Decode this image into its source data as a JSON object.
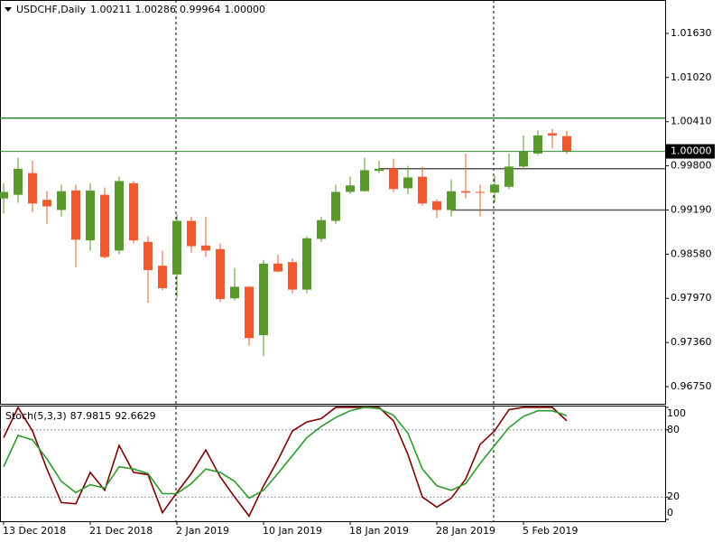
{
  "chart_data": [
    {
      "type": "candlestick",
      "title": "USDCHF,Daily",
      "readout": [
        "1.00211",
        "1.00286",
        "0.99964",
        "1.00000"
      ],
      "price_label": "1.00000",
      "categories": [
        "13 Dec 2018",
        null,
        null,
        null,
        null,
        null,
        "21 Dec 2018",
        null,
        null,
        null,
        null,
        null,
        "2 Jan 2019",
        null,
        null,
        null,
        null,
        null,
        "10 Jan 2019",
        null,
        null,
        null,
        null,
        null,
        "18 Jan 2019",
        null,
        null,
        null,
        null,
        null,
        "28 Jan 2019",
        null,
        null,
        null,
        null,
        null,
        "5 Feb 2019",
        null,
        null,
        null
      ],
      "open": [
        0.9935,
        0.994,
        0.997,
        0.9933,
        0.9919,
        0.9946,
        0.9877,
        0.994,
        0.9863,
        0.9956,
        0.9875,
        0.9842,
        0.983,
        0.9904,
        0.987,
        0.9865,
        0.9797,
        0.9813,
        0.9746,
        0.9845,
        0.9847,
        0.9809,
        0.9879,
        0.9904,
        0.9944,
        0.9945,
        0.9973,
        0.9976,
        0.9949,
        0.9965,
        0.9931,
        0.9919,
        0.9945,
        0.9944,
        0.9943,
        0.9951,
        0.9979,
        0.9997,
        1.0025,
        1.00211
      ],
      "high": [
        0.9956,
        0.9991,
        0.9987,
        0.9945,
        0.9954,
        0.9954,
        0.9956,
        0.995,
        0.9965,
        0.9959,
        0.9883,
        0.9863,
        0.9913,
        0.991,
        0.991,
        0.9873,
        0.9839,
        0.9814,
        0.985,
        0.9857,
        0.9852,
        0.9883,
        0.991,
        0.9954,
        0.9965,
        0.9991,
        0.9987,
        0.999,
        0.998,
        0.9979,
        0.9934,
        0.9961,
        0.9997,
        0.9954,
        0.9966,
        0.9997,
        1.0022,
        1.0029,
        1.0031,
        1.00286
      ],
      "low": [
        0.9914,
        0.9929,
        0.9916,
        0.99,
        0.991,
        0.984,
        0.9863,
        0.9852,
        0.9858,
        0.9873,
        0.9791,
        0.9808,
        0.9798,
        0.986,
        0.9854,
        0.9792,
        0.9794,
        0.9732,
        0.9717,
        0.9833,
        0.9804,
        0.9804,
        0.9875,
        0.99,
        0.9941,
        0.9944,
        0.997,
        0.9944,
        0.9941,
        0.9925,
        0.9908,
        0.991,
        0.9935,
        0.991,
        0.9929,
        0.9948,
        0.9976,
        0.9995,
        1.0004,
        0.99964
      ],
      "close": [
        0.9944,
        0.9976,
        0.9928,
        0.9924,
        0.9945,
        0.9878,
        0.9946,
        0.9854,
        0.9959,
        0.9877,
        0.9836,
        0.9811,
        0.9904,
        0.9869,
        0.9863,
        0.9796,
        0.9813,
        0.9742,
        0.9845,
        0.9834,
        0.9809,
        0.988,
        0.9905,
        0.9944,
        0.9953,
        0.9974,
        0.9976,
        0.9948,
        0.9964,
        0.9928,
        0.9919,
        0.9945,
        0.9943,
        0.9943,
        0.9954,
        0.9979,
        1.0,
        1.0022,
        1.0022,
        1.0
      ],
      "up_color": "#5a9a2c",
      "down_color": "#f05a2e",
      "ylim": [
        0.96513,
        1.02091
      ],
      "yticks": [
        {
          "value": 0.9675,
          "label": "0.96750"
        },
        {
          "value": 0.9736,
          "label": "0.97360"
        },
        {
          "value": 0.9797,
          "label": "0.97970"
        },
        {
          "value": 0.9858,
          "label": "0.98580"
        },
        {
          "value": 0.9919,
          "label": "0.99190"
        },
        {
          "value": 0.998,
          "label": "0.99800"
        },
        {
          "value": 1.0041,
          "label": "1.00410"
        },
        {
          "value": 1.0102,
          "label": "1.01020"
        },
        {
          "value": 1.0163,
          "label": "1.01630"
        }
      ],
      "hlines": [
        {
          "value": 1.0046,
          "color": "#2e8b2e",
          "from": 0
        },
        {
          "value": 0.9976,
          "color": "#555555",
          "from": 26
        },
        {
          "value": 0.9919,
          "color": "#555555",
          "from": 31
        }
      ],
      "period_separators": [
        12,
        34
      ]
    },
    {
      "type": "line",
      "title": "Stoch(5,3,3)",
      "readout": [
        "87.9815",
        "92.6629"
      ],
      "series": [
        {
          "color": "#800000",
          "values": [
            73,
            100,
            79,
            45,
            15,
            14,
            42,
            26,
            66,
            42,
            40,
            6,
            24,
            41,
            62,
            38,
            20,
            3,
            30,
            53,
            79,
            87,
            90,
            100,
            100,
            100,
            100,
            88,
            58,
            20,
            11,
            19,
            36,
            67,
            79,
            98,
            100,
            100,
            100,
            87.9815
          ]
        },
        {
          "color": "#2e9a2e",
          "values": [
            47,
            75,
            71,
            54,
            34,
            24,
            31,
            28,
            47,
            45,
            41,
            23,
            23,
            32,
            45,
            42,
            34,
            19,
            26,
            41,
            57,
            73,
            83,
            91,
            97,
            100,
            99,
            93,
            77,
            45,
            30,
            26,
            32,
            50,
            66,
            82,
            92,
            97,
            97,
            92.6629
          ]
        }
      ],
      "ylim": [
        -1.6,
        101.6
      ],
      "yticks": [
        0,
        20,
        80,
        100
      ],
      "levels": [
        20,
        80
      ]
    }
  ]
}
